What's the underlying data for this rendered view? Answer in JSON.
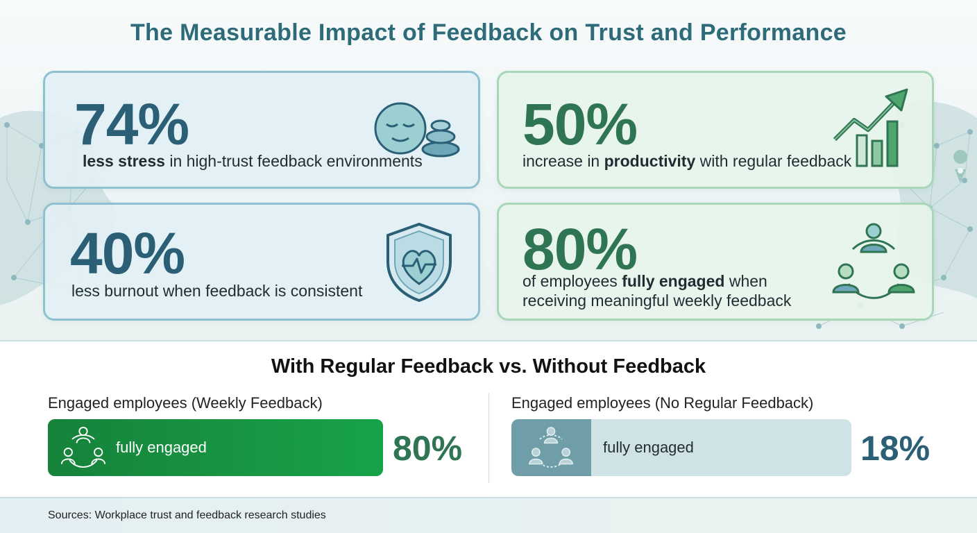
{
  "title": "The Measurable Impact of Feedback on Trust and Performance",
  "stats": [
    {
      "value": "74%",
      "desc_bold": "less stress",
      "desc_rest": " in high-trust feedback environments",
      "icon": "calm-face-stones-icon",
      "accent": "#2a5f76"
    },
    {
      "value": "50%",
      "desc_pre": "increase in ",
      "desc_bold": "productivity",
      "desc_rest": " with regular feedback",
      "icon": "growth-chart-arrow-icon",
      "accent": "#2f7553"
    },
    {
      "value": "40%",
      "desc": "less burnout when feedback is consistent",
      "icon": "heart-shield-icon",
      "accent": "#2a5f76"
    },
    {
      "value": "80%",
      "desc_pre": "of employees ",
      "desc_bold": "fully engaged",
      "desc_rest": " when",
      "desc_line2": "receiving meaningful weekly feedback",
      "icon": "team-cycle-icon",
      "accent": "#2f7553"
    }
  ],
  "comparison": {
    "title": "With Regular Feedback vs. Without Feedback",
    "with_feedback": {
      "label": "Engaged employees (Weekly Feedback)",
      "bar_text": "fully engaged",
      "percent": "80%",
      "value": 0.8,
      "color": "#15963f"
    },
    "without_feedback": {
      "label": "Engaged employees (No Regular Feedback)",
      "bar_text": "fully engaged",
      "percent": "18%",
      "value": 0.18,
      "color": "#6f9ea8"
    }
  },
  "footer": {
    "sources": "Sources: Workplace trust and feedback research studies"
  }
}
